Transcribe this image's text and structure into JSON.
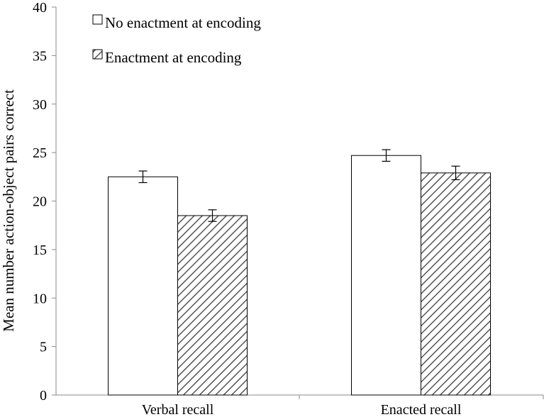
{
  "chart_data": {
    "type": "bar",
    "title": "",
    "xlabel": "",
    "ylabel": "Mean number action-object pairs correct",
    "ylim": [
      0,
      40
    ],
    "yticks": [
      0,
      5,
      10,
      15,
      20,
      25,
      30,
      35,
      40
    ],
    "categories": [
      "Verbal recall",
      "Enacted recall"
    ],
    "series": [
      {
        "name": "No enactment at encoding",
        "values": [
          22.5,
          24.7
        ],
        "errors": [
          0.6,
          0.6
        ],
        "fill": "#ffffff",
        "pattern": "none"
      },
      {
        "name": "Enactment at encoding",
        "values": [
          18.5,
          22.9
        ],
        "errors": [
          0.6,
          0.7
        ],
        "fill": "#ffffff",
        "pattern": "diagonal-hatch"
      }
    ],
    "legend_position": "top-left",
    "grid": false,
    "colors": {
      "bar_stroke": "#000000",
      "hatch": "#555555",
      "axis": "#8a8a8a"
    }
  }
}
